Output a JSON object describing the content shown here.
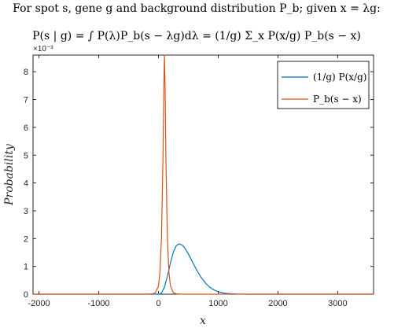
{
  "chart_data": {
    "type": "line",
    "title": [
      "For spot s, gene g and background distribution P_b; given x = λg:",
      "P(s | g) = ∫ P(λ)P_b(s − λg)dλ = (1/g) Σ_x P(x/g) P_b(s − x)"
    ],
    "xlabel": "x",
    "ylabel": "Probability",
    "y_exponent_label": "×10⁻³",
    "xlim": [
      -2100,
      3600
    ],
    "ylim": [
      0,
      0.0086
    ],
    "x_ticks": [
      -2000,
      -1000,
      0,
      1000,
      2000,
      3000
    ],
    "x_tick_labels": [
      "-2000",
      "-1000",
      "0",
      "1000",
      "2000",
      "3000"
    ],
    "y_ticks": [
      0,
      0.001,
      0.002,
      0.003,
      0.004,
      0.005,
      0.006,
      0.007,
      0.008
    ],
    "y_tick_labels": [
      "0",
      "1",
      "2",
      "3",
      "4",
      "5",
      "6",
      "7",
      "8"
    ],
    "legend_position": "top-right",
    "series": [
      {
        "name": "(1/g) P(x/g)",
        "color": "#0072BD",
        "x": [
          -2100,
          0,
          20,
          50,
          100,
          150,
          200,
          250,
          300,
          350,
          400,
          450,
          500,
          550,
          600,
          650,
          700,
          750,
          800,
          850,
          900,
          950,
          1000,
          1050,
          1100,
          1150,
          1200,
          1300,
          1500,
          2000,
          3600
        ],
        "y": [
          0,
          0,
          4e-06,
          4e-05,
          0.00025,
          0.00065,
          0.00112,
          0.00152,
          0.00175,
          0.00181,
          0.00176,
          0.00163,
          0.00145,
          0.00124,
          0.00103,
          0.00083,
          0.00065,
          0.0005,
          0.00037,
          0.00027,
          0.00019,
          0.00013,
          9e-05,
          6e-05,
          4e-05,
          2.5e-05,
          1.6e-05,
          6e-06,
          1e-06,
          0,
          0
        ]
      },
      {
        "name": "P_b(s − x)",
        "color": "#D95319",
        "x": [
          -2100,
          -200,
          -100,
          -50,
          0,
          25,
          50,
          75,
          90,
          100,
          110,
          125,
          150,
          175,
          200,
          250,
          300,
          400,
          3600
        ],
        "y": [
          0,
          0,
          1e-05,
          5e-05,
          0.0003,
          0.0008,
          0.002,
          0.0048,
          0.0075,
          0.0086,
          0.0075,
          0.0048,
          0.002,
          0.0008,
          0.0003,
          5e-05,
          1e-05,
          0,
          0
        ]
      }
    ]
  }
}
